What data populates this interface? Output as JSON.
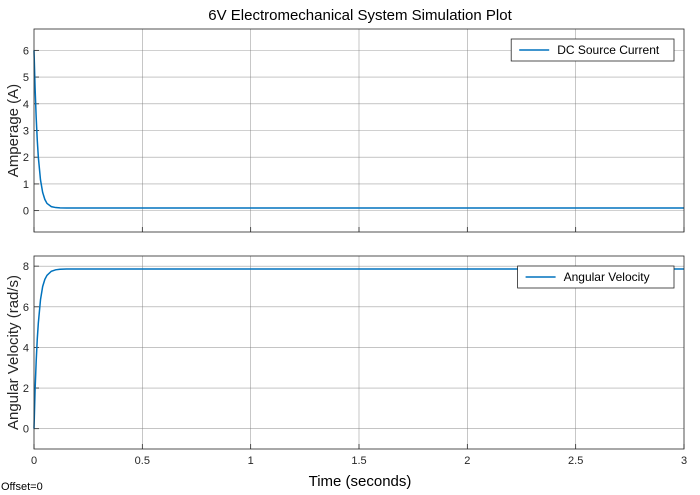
{
  "figure": {
    "title": "6V Electromechanical System Simulation Plot",
    "xlabel": "Time (seconds)",
    "footer": "Offset=0"
  },
  "colors": {
    "line": "#0072BD",
    "grid": "#7a7a7a",
    "axis": "#262626",
    "background": "#ffffff"
  },
  "chart_data": [
    {
      "type": "line",
      "title": "6V Electromechanical System Simulation Plot",
      "ylabel": "Amperage (A)",
      "xlim": [
        0,
        3
      ],
      "ylim": [
        -0.8,
        6.8
      ],
      "xticks": [
        0,
        0.5,
        1,
        1.5,
        2,
        2.5,
        3
      ],
      "xtick_labels": [
        "",
        "",
        "",
        "",
        "",
        "",
        ""
      ],
      "yticks": [
        0,
        1,
        2,
        3,
        4,
        5,
        6
      ],
      "ytick_labels": [
        "0",
        "1",
        "2",
        "3",
        "4",
        "5",
        "6"
      ],
      "grid": true,
      "legend_position": "top-right",
      "series": [
        {
          "name": "DC Source Current",
          "x": [
            0,
            0.005,
            0.01,
            0.015,
            0.02,
            0.03,
            0.04,
            0.05,
            0.06,
            0.08,
            0.1,
            0.12,
            0.15,
            0.2,
            0.3,
            0.5,
            1,
            1.5,
            2,
            2.5,
            3
          ],
          "y": [
            6.0,
            4.6,
            3.5,
            2.65,
            2.0,
            1.15,
            0.68,
            0.42,
            0.27,
            0.15,
            0.115,
            0.105,
            0.1,
            0.1,
            0.1,
            0.1,
            0.1,
            0.1,
            0.1,
            0.1,
            0.1
          ]
        }
      ]
    },
    {
      "type": "line",
      "ylabel": "Angular Velocity (rad/s)",
      "xlim": [
        0,
        3
      ],
      "ylim": [
        -1,
        8.5
      ],
      "xticks": [
        0,
        0.5,
        1,
        1.5,
        2,
        2.5,
        3
      ],
      "xtick_labels": [
        "0",
        "0.5",
        "1",
        "1.5",
        "2",
        "2.5",
        "3"
      ],
      "yticks": [
        0,
        2,
        4,
        6,
        8
      ],
      "ytick_labels": [
        "0",
        "2",
        "4",
        "6",
        "8"
      ],
      "grid": true,
      "legend_position": "top-right",
      "series": [
        {
          "name": "Angular Velocity",
          "x": [
            0,
            0.005,
            0.01,
            0.015,
            0.02,
            0.03,
            0.04,
            0.05,
            0.06,
            0.08,
            0.1,
            0.12,
            0.15,
            0.2,
            0.3,
            0.5,
            1,
            1.5,
            2,
            2.5,
            3
          ],
          "y": [
            0,
            1.9,
            3.3,
            4.4,
            5.2,
            6.35,
            7.0,
            7.35,
            7.55,
            7.75,
            7.82,
            7.85,
            7.86,
            7.86,
            7.86,
            7.86,
            7.86,
            7.86,
            7.86,
            7.86,
            7.86
          ]
        }
      ]
    }
  ]
}
